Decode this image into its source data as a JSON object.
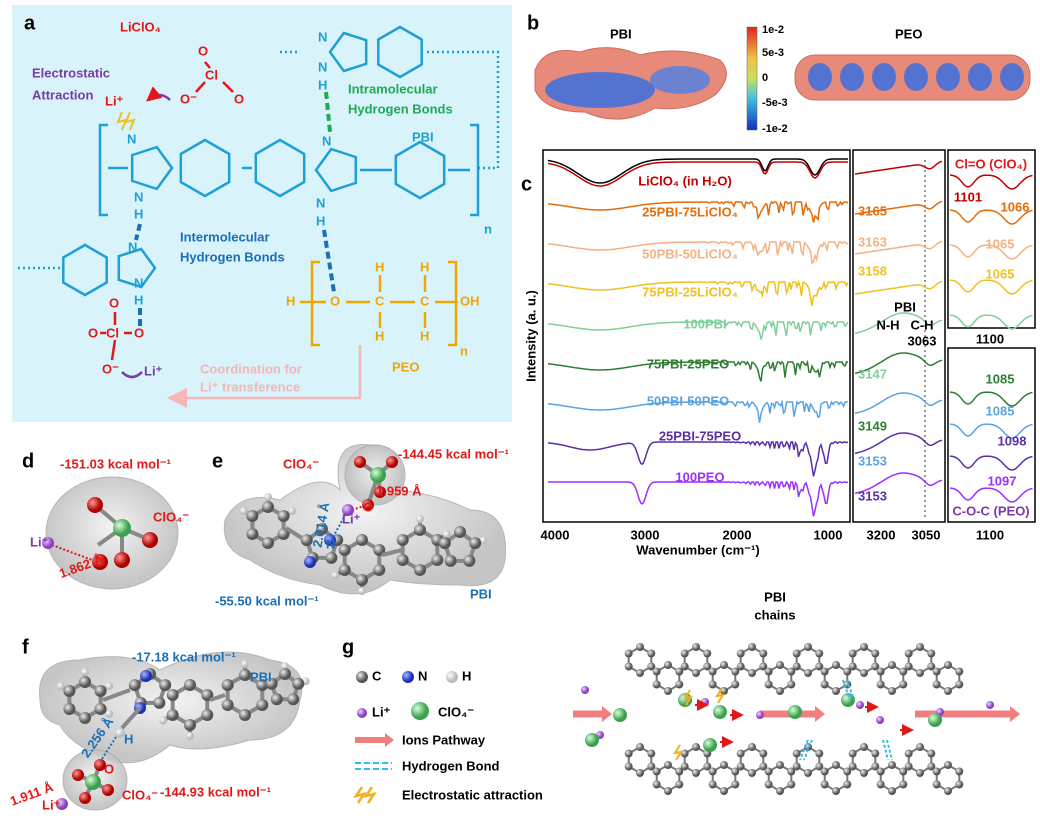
{
  "panel_a": {
    "label": "a",
    "salt": "LiClO₄",
    "electrostatic": [
      "Electrostatic",
      "Attraction"
    ],
    "intra": [
      "Intramolecular",
      "Hydrogen Bonds"
    ],
    "inter": [
      "Intermolecular",
      "Hydrogen Bonds"
    ],
    "pbi": "PBI",
    "peo": "PEO",
    "n": [
      "n",
      "n"
    ],
    "coordination": [
      "Coordination for",
      "Li⁺ transference"
    ],
    "atoms": [
      "O",
      "Cl",
      "O",
      "O⁻",
      "Li⁺",
      "N",
      "N",
      "H",
      "N",
      "N",
      "H",
      "N",
      "N",
      "H",
      "N",
      "N",
      "H",
      "O",
      "Cl",
      "O",
      "O",
      "O⁻",
      "Li⁺",
      "H",
      "O",
      "C",
      "C",
      "OH",
      "H",
      "H",
      "H",
      "H"
    ]
  },
  "panel_b": {
    "label": "b",
    "pbi": "PBI",
    "peo": "PEO",
    "colorbar": [
      "1e-2",
      "5e-3",
      "0",
      "-5e-3",
      "-1e-2"
    ]
  },
  "panel_c": {
    "label": "c",
    "y_label": "Intensity (a. u.)",
    "x_label": "Wavenumber (cm⁻¹)",
    "xticks": [
      "4000",
      "3000",
      "2000",
      "1000"
    ],
    "series_labels": [
      "LiClO₄ (in H₂O)",
      "25PBI-75LiClO₄",
      "50PBI-50LiClO₄",
      "75PBI-25LiClO₄",
      "100PBI",
      "75PBI-25PEO",
      "50PBI-50PEO",
      "25PBI-75PEO",
      "100PEO"
    ],
    "nh_panel": {
      "ticks": [
        "3200",
        "3050"
      ],
      "shifts": [
        "3165",
        "3163",
        "3158",
        "3147",
        "3149",
        "3153",
        "3153"
      ],
      "pbi": "PBI",
      "nh": "N-H",
      "ch": "C-H",
      "ch_value": "3063"
    },
    "clo_panel": {
      "title": "Cl=O (ClO₄)",
      "shifts": [
        "1101",
        "1066",
        "1065",
        "1065"
      ],
      "tick": "1100"
    },
    "coc_panel": {
      "shifts": [
        "1085",
        "1085",
        "1098",
        "1097"
      ],
      "title": "C-O-C (PEO)",
      "tick": "1100"
    }
  },
  "panel_d": {
    "label": "d",
    "energy": "-151.03 kcal mol⁻¹",
    "anion": "ClO₄⁻",
    "cation": "Li⁺",
    "atom": "O",
    "distance": "1.862 Å"
  },
  "panel_e": {
    "label": "e",
    "anion": "ClO₄⁻",
    "energy_top": "-144.45 kcal mol⁻¹",
    "distance_n": "2.014 Å",
    "distance_o": "1.959 Å",
    "cation": "Li⁺",
    "atom_o": "O",
    "atom_n": "N",
    "energy_bottom": "-55.50 kcal mol⁻¹",
    "pbi": "PBI"
  },
  "panel_f": {
    "label": "f",
    "energy_top": "-17.18 kcal mol⁻¹",
    "pbi": "PBI",
    "distance_h": "2.256 Å",
    "atom_h": "H",
    "atom_o": "O",
    "distance_li": "1.911 Å",
    "cation": "Li⁺",
    "anion": "ClO₄⁻",
    "energy_bottom": "-144.93 kcal mol⁻¹"
  },
  "panel_g": {
    "label": "g",
    "legend": [
      "C",
      "N",
      "H",
      "Li⁺",
      "ClO₄⁻",
      "Ions Pathway",
      "Hydrogen Bond",
      "Electrostatic attraction"
    ],
    "chains": [
      "PBI",
      "chains"
    ]
  }
}
